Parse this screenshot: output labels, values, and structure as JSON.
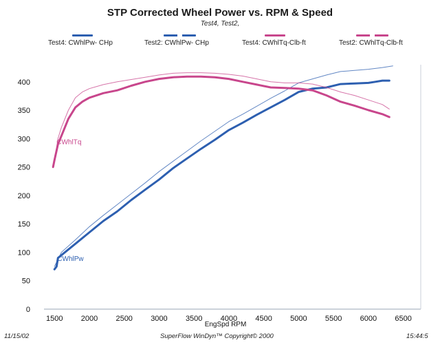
{
  "header": {
    "title": "STP Corrected Wheel Power vs. RPM & Speed",
    "subtitle": "Test4, Test2,"
  },
  "footer": {
    "date": "11/15/02",
    "software": "SuperFlow WinDyn™  Copyright© 2000",
    "time": "15:44:5"
  },
  "colors": {
    "power": "#2d5fb0",
    "torque": "#c8468c"
  },
  "chart_data": {
    "type": "line",
    "xlabel": "EngSpd  RPM",
    "ylabel": "",
    "xlim": [
      1350,
      6750
    ],
    "ylim": [
      0,
      430
    ],
    "xticks": [
      1500,
      2000,
      2500,
      3000,
      3500,
      4000,
      4500,
      5000,
      5500,
      6000,
      6500
    ],
    "yticks": [
      0,
      50,
      100,
      150,
      200,
      250,
      300,
      350,
      400
    ],
    "annotations": [
      {
        "text": "CWhlTq",
        "x": 1530,
        "y": 290,
        "series": "torque"
      },
      {
        "text": "CWhlPw",
        "x": 1540,
        "y": 85,
        "series": "power"
      }
    ],
    "series": [
      {
        "name": "Test4: CWhlPw- CHp",
        "style": "thick",
        "color": "#2d5fb0",
        "x": [
          1500,
          1530,
          1550,
          1600,
          1700,
          1800,
          1900,
          2000,
          2200,
          2400,
          2600,
          2800,
          3000,
          3200,
          3400,
          3600,
          3800,
          4000,
          4200,
          4400,
          4600,
          4800,
          5000,
          5200,
          5400,
          5600,
          5800,
          6000,
          6100,
          6200,
          6300
        ],
        "y": [
          70,
          75,
          90,
          95,
          105,
          115,
          125,
          135,
          155,
          172,
          192,
          210,
          228,
          248,
          265,
          282,
          298,
          315,
          328,
          342,
          355,
          368,
          382,
          388,
          390,
          396,
          397,
          398,
          400,
          402,
          402
        ]
      },
      {
        "name": "Test2: CWhlPw- CHp",
        "style": "thin",
        "color": "#2d5fb0",
        "x": [
          1500,
          1600,
          1800,
          2000,
          2200,
          2400,
          2600,
          2800,
          3000,
          3200,
          3400,
          3600,
          3800,
          4000,
          4200,
          4400,
          4600,
          4800,
          5000,
          5200,
          5400,
          5600,
          5800,
          6000,
          6200,
          6350
        ],
        "y": [
          75,
          100,
          122,
          145,
          165,
          184,
          203,
          222,
          242,
          260,
          278,
          296,
          313,
          330,
          343,
          357,
          371,
          384,
          398,
          405,
          412,
          418,
          420,
          422,
          425,
          428
        ]
      },
      {
        "name": "Test4: CWhlTq-Clb-ft",
        "style": "thick",
        "color": "#c8468c",
        "x": [
          1480,
          1500,
          1550,
          1600,
          1700,
          1800,
          1900,
          2000,
          2200,
          2400,
          2600,
          2800,
          3000,
          3200,
          3400,
          3600,
          3800,
          4000,
          4200,
          4400,
          4600,
          4800,
          5000,
          5200,
          5400,
          5600,
          5800,
          6000,
          6200,
          6300
        ],
        "y": [
          250,
          262,
          290,
          305,
          335,
          355,
          365,
          372,
          380,
          385,
          393,
          400,
          405,
          408,
          409,
          409,
          408,
          405,
          400,
          395,
          390,
          389,
          388,
          385,
          376,
          365,
          358,
          350,
          343,
          338
        ]
      },
      {
        "name": "Test2: CWhlTq-Clb-ft",
        "style": "thin",
        "color": "#c8468c",
        "x": [
          1500,
          1550,
          1600,
          1700,
          1800,
          1900,
          2000,
          2200,
          2400,
          2600,
          2800,
          3000,
          3200,
          3400,
          3600,
          3800,
          4000,
          4200,
          4400,
          4600,
          4800,
          5000,
          5200,
          5400,
          5600,
          5800,
          6000,
          6200,
          6300
        ],
        "y": [
          260,
          300,
          320,
          350,
          372,
          382,
          388,
          395,
          400,
          404,
          408,
          412,
          415,
          416,
          416,
          415,
          413,
          410,
          405,
          400,
          398,
          398,
          396,
          390,
          382,
          376,
          368,
          360,
          352
        ]
      }
    ]
  }
}
